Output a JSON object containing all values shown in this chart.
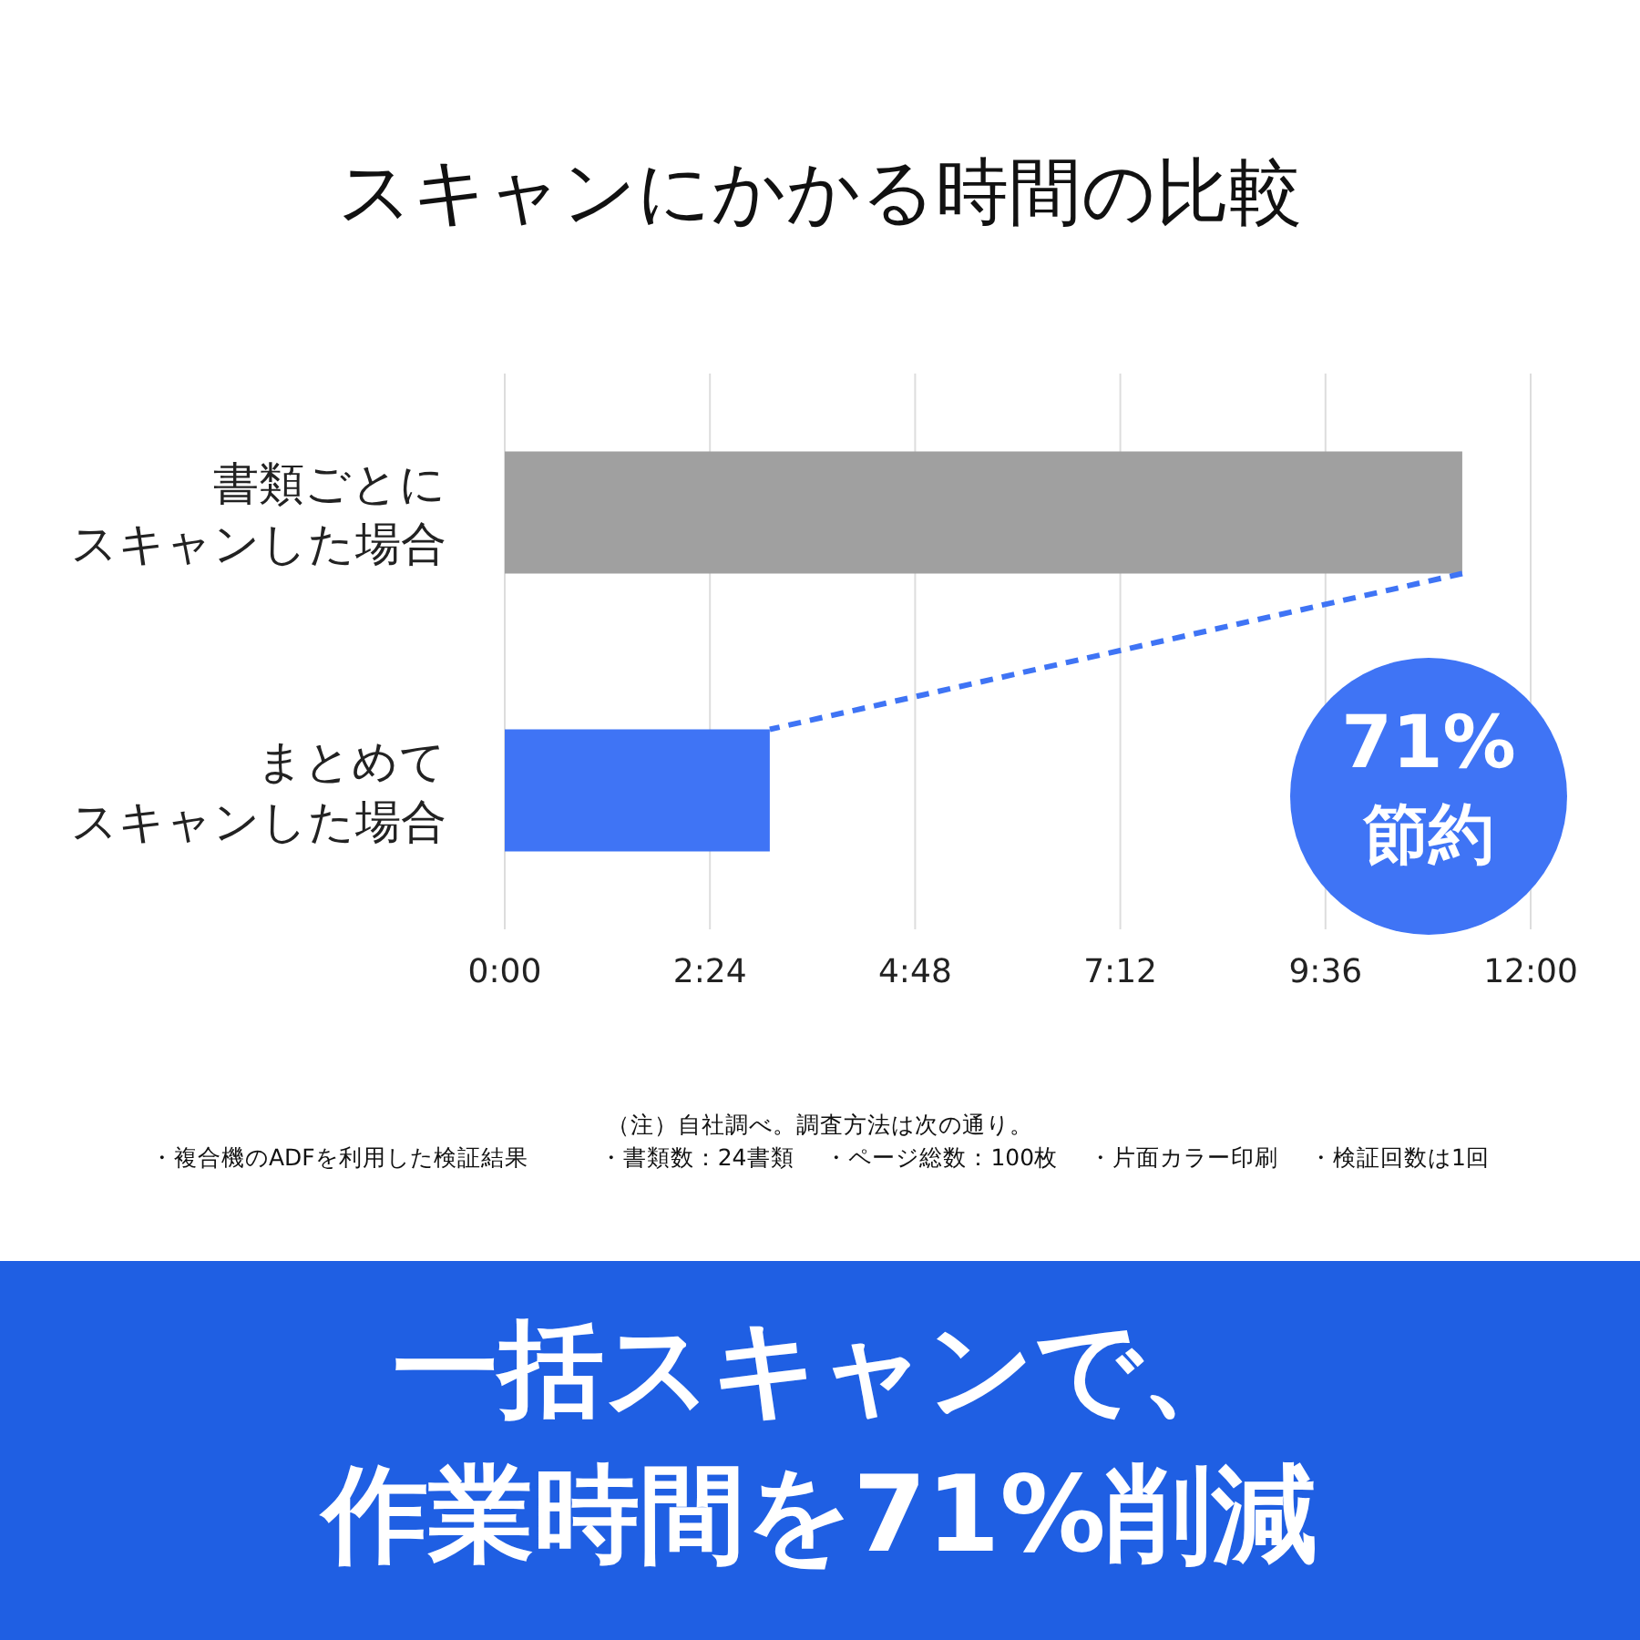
{
  "chart_data": {
    "type": "bar",
    "orientation": "horizontal",
    "title": "スキャンにかかる時間の比較",
    "categories": [
      "書類ごとにスキャンした場合",
      "まとめてスキャンした場合"
    ],
    "values": [
      11.2,
      3.1
    ],
    "colors": [
      "#a0a0a0",
      "#3f74f5"
    ],
    "xlim": [
      0,
      12
    ],
    "xticks": [
      {
        "value": 0,
        "label": "0:00"
      },
      {
        "value": 2.4,
        "label": "2:24"
      },
      {
        "value": 4.8,
        "label": "4:48"
      },
      {
        "value": 7.2,
        "label": "7:12"
      },
      {
        "value": 9.6,
        "label": "9:36"
      },
      {
        "value": 12,
        "label": "12:00"
      }
    ],
    "grid": "x",
    "annotations": [
      "71%",
      "節約",
      "（注）自社調べ。調査方法は次の通り。",
      "・複合機のADFを利用した検証結果　　　・書類数：24書類　 ・ページ総数：100枚　 ・片面カラー印刷　 ・検証回数は1回",
      "一括スキャンで、",
      "作業時間を71%削減"
    ]
  }
}
